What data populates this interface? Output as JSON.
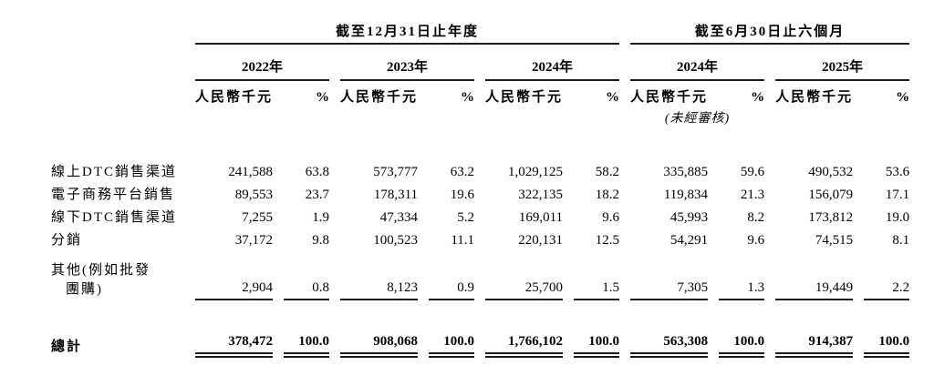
{
  "page": {
    "background": "#ffffff",
    "text_color": "#000000",
    "rule_color": "#1c1c1c"
  },
  "table": {
    "section1_title": "截至12月31日止年度",
    "section2_title": "截至6月30日止六個月",
    "years": [
      "2022年",
      "2023年",
      "2024年",
      "2024年",
      "2025年"
    ],
    "unit_header": "人民幣千元",
    "pct_header": "%",
    "unaudited": "(未經審核)",
    "rows": [
      {
        "label": "線上DTC銷售渠道",
        "values": [
          "241,588",
          "63.8",
          "573,777",
          "63.2",
          "1,029,125",
          "58.2",
          "335,885",
          "59.6",
          "490,532",
          "53.6"
        ]
      },
      {
        "label": "電子商務平台銷售",
        "values": [
          "89,553",
          "23.7",
          "178,311",
          "19.6",
          "322,135",
          "18.2",
          "119,834",
          "21.3",
          "156,079",
          "17.1"
        ]
      },
      {
        "label": "線下DTC銷售渠道",
        "values": [
          "7,255",
          "1.9",
          "47,334",
          "5.2",
          "169,011",
          "9.6",
          "45,993",
          "8.2",
          "173,812",
          "19.0"
        ]
      },
      {
        "label": "分銷",
        "values": [
          "37,172",
          "9.8",
          "100,523",
          "11.1",
          "220,131",
          "12.5",
          "54,291",
          "9.6",
          "74,515",
          "8.1"
        ]
      },
      {
        "label": "其他(例如批發",
        "label2": "團購)",
        "values": [
          "2,904",
          "0.8",
          "8,123",
          "0.9",
          "25,700",
          "1.5",
          "7,305",
          "1.3",
          "19,449",
          "2.2"
        ]
      }
    ],
    "total": {
      "label": "總計",
      "values": [
        "378,472",
        "100.0",
        "908,068",
        "100.0",
        "1,766,102",
        "100.0",
        "563,308",
        "100.0",
        "914,387",
        "100.0"
      ]
    }
  }
}
